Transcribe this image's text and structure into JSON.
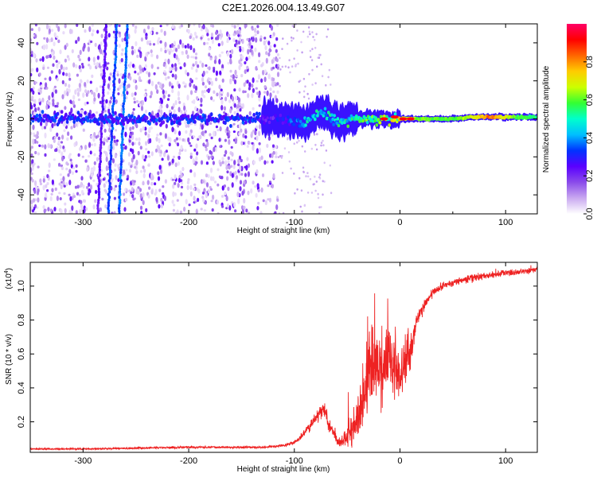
{
  "title": "C2E1.2026.004.13.49.G07",
  "chart_data": [
    {
      "type": "heatmap",
      "name": "spectrogram",
      "xlabel": "Height of straight line (km)",
      "ylabel": "Frequency (Hz)",
      "xlim": [
        -350,
        130
      ],
      "ylim": [
        -50,
        50
      ],
      "xticks": [
        -300,
        -200,
        -100,
        0,
        100
      ],
      "xtick_labels": [
        "-300",
        "-200",
        "-100",
        "0",
        "100"
      ],
      "yticks": [
        -40,
        -20,
        0,
        20,
        40
      ],
      "ytick_labels": [
        "-40",
        "-20",
        "0",
        "20",
        "40"
      ],
      "colorbar": {
        "label": "Normalized spectral amplitude",
        "range": [
          0,
          1
        ],
        "ticks": [
          0.0,
          0.2,
          0.4,
          0.6,
          0.8
        ],
        "tick_labels": [
          "0.0",
          "0.2",
          "0.4",
          "0.6",
          "0.8"
        ],
        "colors": [
          "#ffffff",
          "#c9a8f0",
          "#8a4bea",
          "#5a00ff",
          "#0033ff",
          "#00bfff",
          "#00ffcc",
          "#33ff33",
          "#ccff00",
          "#ffcc00",
          "#ff6600",
          "#ff0000",
          "#ff0066"
        ]
      },
      "features": {
        "noise_region_x": [
          -350,
          -115
        ],
        "carrier_track": [
          {
            "x": -130,
            "y": 0,
            "amp": 0.22
          },
          {
            "x": -110,
            "y": 0,
            "amp": 0.3
          },
          {
            "x": -90,
            "y": -2,
            "amp": 0.45
          },
          {
            "x": -75,
            "y": 4,
            "amp": 0.5
          },
          {
            "x": -60,
            "y": -2,
            "amp": 0.5
          },
          {
            "x": -40,
            "y": 0,
            "amp": 0.55
          },
          {
            "x": -20,
            "y": 0,
            "amp": 0.6
          },
          {
            "x": 0,
            "y": 0,
            "amp": 0.72
          },
          {
            "x": 20,
            "y": 0,
            "amp": 0.62
          },
          {
            "x": 50,
            "y": 0,
            "amp": 0.6
          },
          {
            "x": 70,
            "y": 1,
            "amp": 0.7
          },
          {
            "x": 85,
            "y": 1,
            "amp": 0.85
          },
          {
            "x": 110,
            "y": 1,
            "amp": 0.6
          },
          {
            "x": 130,
            "y": 1,
            "amp": 0.55
          }
        ],
        "red_spots": [
          {
            "x": -15,
            "y": 0
          },
          {
            "x": -5,
            "y": 1
          },
          {
            "x": 3,
            "y": 0
          },
          {
            "x": 10,
            "y": 0
          }
        ]
      }
    },
    {
      "type": "line",
      "name": "snr",
      "xlabel": "Height of straight line (km)",
      "ylabel": "SNR (10 * v/v)",
      "yscale_label": "(x10",
      "yscale_exponent": "4",
      "yscale_close": ")",
      "xlim": [
        -350,
        130
      ],
      "ylim": [
        0.02,
        1.14
      ],
      "xticks": [
        -300,
        -200,
        -100,
        0,
        100
      ],
      "xtick_labels": [
        "-300",
        "-200",
        "-100",
        "0",
        "100"
      ],
      "yticks": [
        0.2,
        0.4,
        0.6,
        0.8,
        1.0
      ],
      "ytick_labels": [
        "0.2",
        "0.4",
        "0.6",
        "0.8",
        "1.0"
      ],
      "color": "#ee2222",
      "series": [
        {
          "name": "SNR",
          "x": [
            -350,
            -300,
            -250,
            -200,
            -160,
            -130,
            -110,
            -100,
            -95,
            -90,
            -85,
            -80,
            -75,
            -72,
            -68,
            -60,
            -55,
            -50,
            -45,
            -40,
            -35,
            -30,
            -25,
            -20,
            -15,
            -10,
            -5,
            0,
            5,
            10,
            15,
            20,
            25,
            30,
            35,
            40,
            50,
            60,
            70,
            80,
            90,
            100,
            110,
            120,
            130
          ],
          "y": [
            0.04,
            0.04,
            0.045,
            0.05,
            0.05,
            0.05,
            0.06,
            0.08,
            0.1,
            0.14,
            0.18,
            0.22,
            0.26,
            0.28,
            0.2,
            0.1,
            0.08,
            0.12,
            0.18,
            0.25,
            0.35,
            0.5,
            0.55,
            0.5,
            0.55,
            0.6,
            0.5,
            0.45,
            0.55,
            0.6,
            0.8,
            0.85,
            0.9,
            0.95,
            0.98,
            1.0,
            1.02,
            1.04,
            1.05,
            1.06,
            1.07,
            1.08,
            1.08,
            1.09,
            1.1
          ],
          "noise": [
            0.005,
            0.005,
            0.006,
            0.006,
            0.006,
            0.006,
            0.008,
            0.01,
            0.015,
            0.02,
            0.025,
            0.03,
            0.04,
            0.05,
            0.04,
            0.03,
            0.03,
            0.06,
            0.1,
            0.15,
            0.2,
            0.25,
            0.2,
            0.2,
            0.2,
            0.2,
            0.2,
            0.15,
            0.15,
            0.12,
            0.06,
            0.04,
            0.03,
            0.025,
            0.02,
            0.02,
            0.02,
            0.02,
            0.02,
            0.02,
            0.02,
            0.02,
            0.02,
            0.02,
            0.02
          ]
        }
      ]
    }
  ]
}
